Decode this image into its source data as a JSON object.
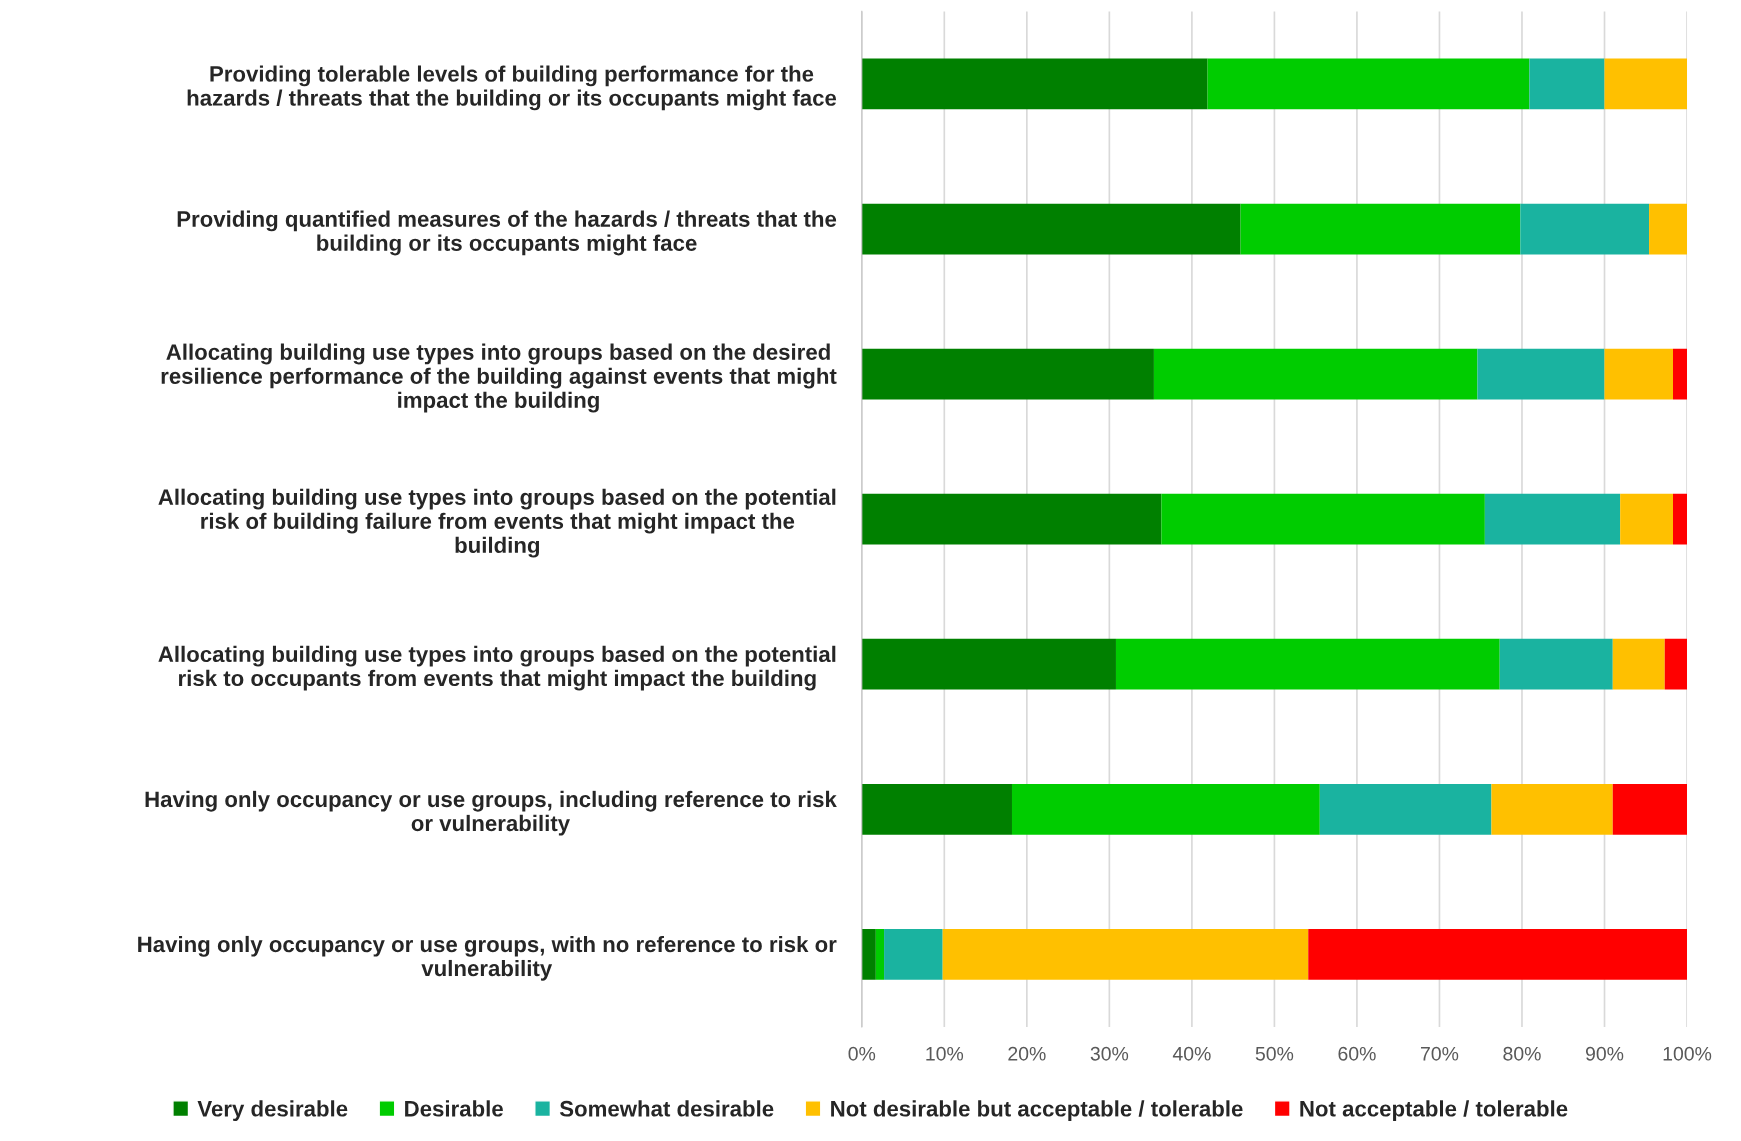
{
  "chart_data": {
    "type": "bar",
    "orientation": "horizontal",
    "stacked": true,
    "categories": [
      "Providing tolerable levels of building performance for the\nhazards / threats that the building or its occupants might face",
      "Providing quantified measures of the hazards / threats that the\nbuilding or its occupants might face",
      "Allocating building use types into groups based on the desired\nresilience performance of the building against events that might\nimpact the building",
      "Allocating building use types into groups based on the potential\nrisk of building failure from events that might impact the\nbuilding",
      "Allocating building use types into groups based on the potential\nrisk to occupants from events that might impact the building",
      "Having only occupancy or use groups, including reference to risk\nor vulnerability",
      "Having only occupancy or use groups, with no reference to risk or\nvulnerability"
    ],
    "series": [
      {
        "name": "Very desirable",
        "color": "#008000",
        "values": [
          41.9,
          45.9,
          35.4,
          36.3,
          30.8,
          18.2,
          1.7
        ]
      },
      {
        "name": "Desirable",
        "color": "#00cc00",
        "values": [
          39.0,
          33.9,
          39.2,
          39.2,
          46.5,
          37.3,
          1.0
        ]
      },
      {
        "name": "Somewhat desirable",
        "color": "#1ab3a0",
        "values": [
          9.1,
          15.6,
          15.4,
          16.4,
          13.7,
          20.8,
          7.1
        ]
      },
      {
        "name": "Not desirable but acceptable / tolerable",
        "color": "#ffc000",
        "values": [
          10.0,
          4.6,
          8.3,
          6.4,
          6.3,
          14.7,
          44.3
        ]
      },
      {
        "name": "Not acceptable / tolerable",
        "color": "#ff0000",
        "values": [
          0,
          0,
          1.7,
          1.7,
          2.7,
          9.0,
          45.9
        ]
      }
    ],
    "xlim": [
      0,
      100
    ],
    "xticks": [
      {
        "value": 0,
        "label": "0%"
      },
      {
        "value": 10,
        "label": "10%"
      },
      {
        "value": 20,
        "label": "20%"
      },
      {
        "value": 30,
        "label": "30%"
      },
      {
        "value": 40,
        "label": "40%"
      },
      {
        "value": 50,
        "label": "50%"
      },
      {
        "value": 60,
        "label": "60%"
      },
      {
        "value": 70,
        "label": "70%"
      },
      {
        "value": 80,
        "label": "80%"
      },
      {
        "value": 90,
        "label": "90%"
      },
      {
        "value": 100,
        "label": "100%"
      }
    ],
    "grid": "x",
    "legend": "bottom"
  }
}
